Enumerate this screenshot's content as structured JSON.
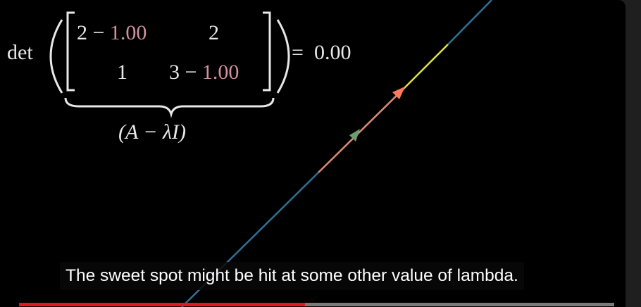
{
  "video": {
    "equation": {
      "det": "det",
      "a11_base": "2 −",
      "a12": "2",
      "a21": "1",
      "a22_base": "3 −",
      "lambda_value": "1.00",
      "equals": "=",
      "result": "0.00",
      "underbrace_label": "(A − λI)"
    },
    "colors": {
      "lambda": "#d4919f",
      "result": "#e5e54a",
      "line_blue": "#2f6e90",
      "line_yellow": "#dede40",
      "line_orange": "#d98a74",
      "arrow_orange": "#ff7a5c",
      "arrow_green": "#6c9e6a"
    }
  },
  "caption": {
    "text": "The sweet spot might be hit at some other value of lambda."
  },
  "player": {
    "progress_fraction": 0.48
  }
}
